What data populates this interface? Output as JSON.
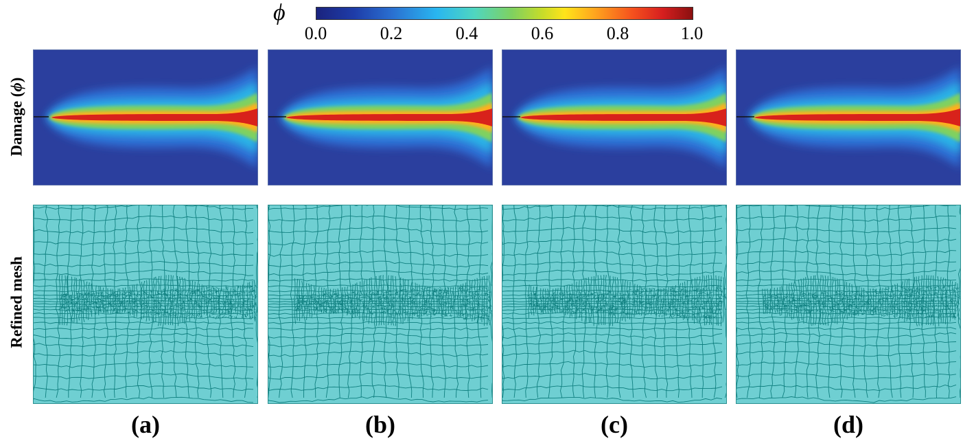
{
  "colorbar": {
    "symbol": "ϕ",
    "ticks": [
      "0.0",
      "0.2",
      "0.4",
      "0.6",
      "0.8",
      "1.0"
    ],
    "colormap": "jet",
    "range": [
      0.0,
      1.0
    ]
  },
  "rows": {
    "damage": {
      "label_text": "Damage (",
      "label_symbol": "ϕ",
      "label_close": ")"
    },
    "mesh": {
      "label": "Refined mesh"
    }
  },
  "panels": [
    {
      "letter": "(a)"
    },
    {
      "letter": "(b)"
    },
    {
      "letter": "(c)"
    },
    {
      "letter": "(d)"
    }
  ],
  "colors": {
    "mesh_fill": "#6fcfd2",
    "mesh_line": "#0f7f7f",
    "damage_background": "#2b3f9e",
    "crack_core": "#d8221b"
  }
}
